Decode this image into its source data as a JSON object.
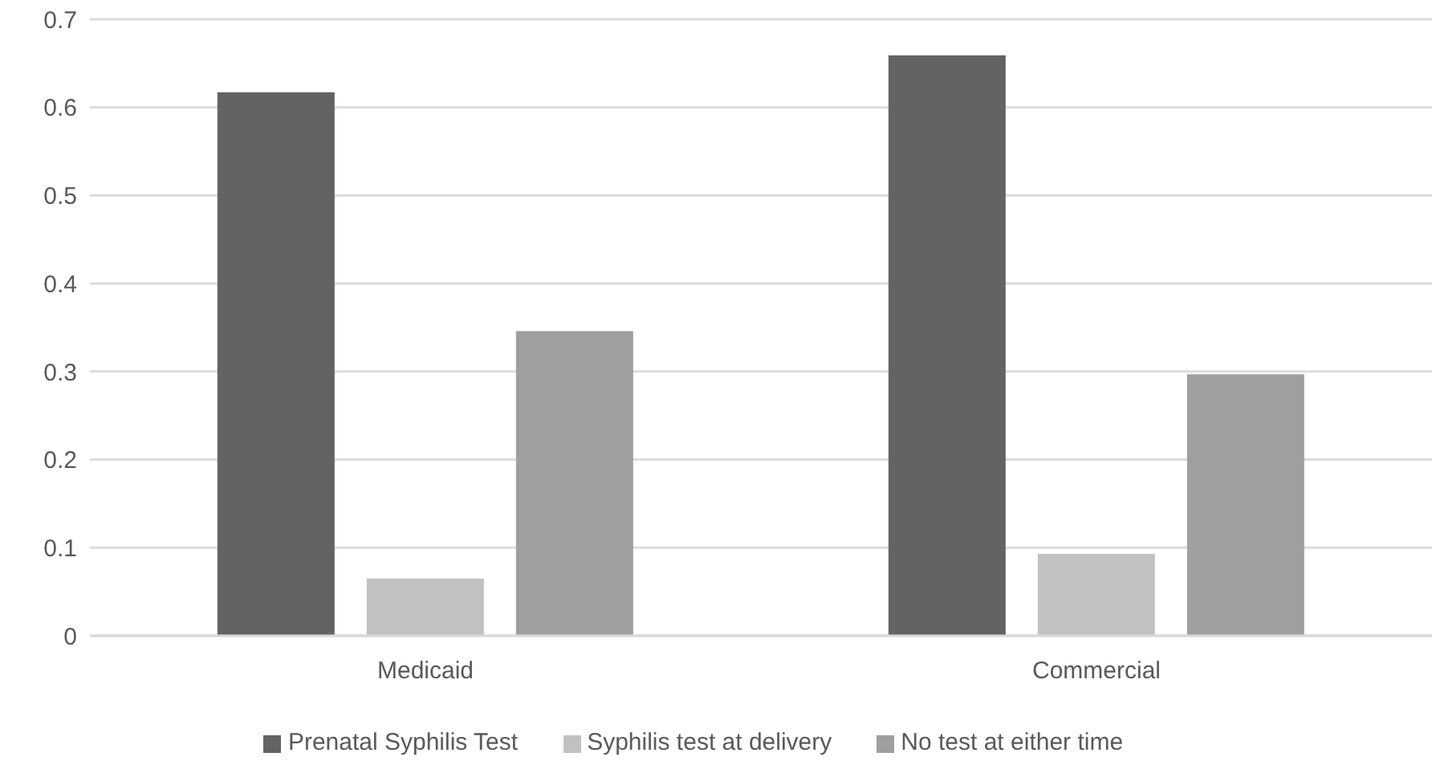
{
  "chart_data": {
    "type": "bar",
    "categories": [
      "Medicaid",
      "Commercial"
    ],
    "series": [
      {
        "name": "Prenatal Syphilis Test",
        "color": "#636363",
        "values": [
          0.617,
          0.659
        ]
      },
      {
        "name": "Syphilis test at delivery",
        "color": "#c1c1c1",
        "values": [
          0.065,
          0.093
        ]
      },
      {
        "name": "No test at either time",
        "color": "#9f9f9f",
        "values": [
          0.346,
          0.297
        ]
      }
    ],
    "ylim": [
      0,
      0.7
    ],
    "yticks": [
      0,
      0.1,
      0.2,
      0.3,
      0.4,
      0.5,
      0.6,
      0.7
    ],
    "grid": "y",
    "legend": "bottom"
  }
}
